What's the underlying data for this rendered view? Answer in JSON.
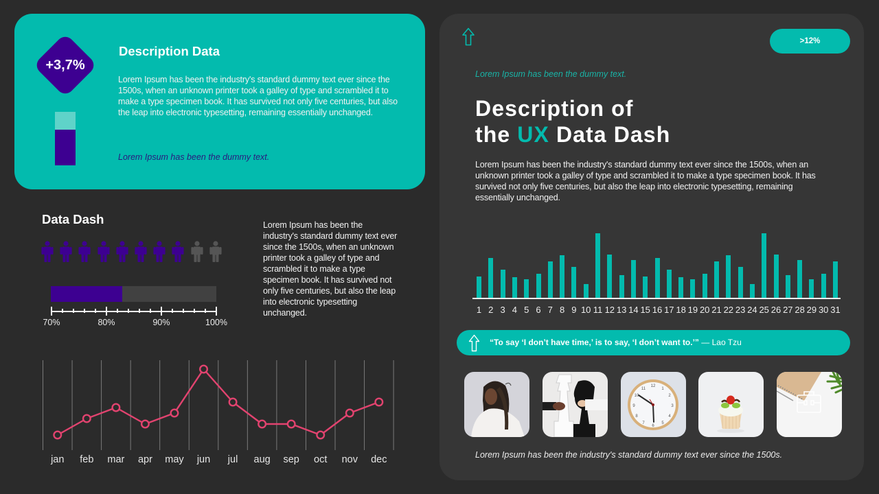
{
  "colors": {
    "background": "#2b2b2b",
    "panel": "#363636",
    "teal": "#03bbae",
    "light_teal": "#5fd3c9",
    "purple": "#3d0091",
    "person_empty": "#555555",
    "line_pink": "#e2436f",
    "gridline": "#7a7a7a"
  },
  "description_card": {
    "badge_value": "+3,7%",
    "title": "Description Data",
    "body": "Lorem Ipsum has been the industry's standard dummy text ever since the 1500s, when an unknown printer took a galley of type and scrambled it to make a type specimen book. It has survived not only five centuries, but also the leap into electronic typesetting, remaining essentially unchanged.",
    "caption": "Lorem Ipsum has been the dummy text."
  },
  "data_dash": {
    "title": "Data Dash",
    "people": {
      "filled": 8,
      "total": 10
    },
    "body": "Lorem Ipsum has been the industry's standard dummy text ever since the 1500s, when an unknown printer took a galley of type and scrambled it to make a type specimen book. It has survived not only five centuries, but also the leap into electronic typesetting unchanged."
  },
  "right_panel": {
    "badge": ">12%",
    "kicker": "Lorem Ipsum has been the dummy text.",
    "title_line1": "Description of",
    "title_line2_pre": "the ",
    "title_line2_accent": "UX",
    "title_line2_post": " Data Dash",
    "body": "Lorem Ipsum has been the industry's standard dummy text ever since the 1500s, when an unknown printer took a galley of type and scrambled it to make a type specimen book. It has survived not only five centuries, but also the leap into electronic typesetting, remaining essentially unchanged.",
    "quote": {
      "text": "“To say ‘I don’t have time,’ is to say, ‘I don’t want to.’”",
      "author": " — Lao Tzu"
    },
    "images": [
      {
        "subject": "woman working"
      },
      {
        "subject": "chess pieces"
      },
      {
        "subject": "wall clock"
      },
      {
        "subject": "cupcake"
      },
      {
        "subject": "notebook with briefcase icon"
      }
    ],
    "footer": "Lorem Ipsum has been the industry's standard dummy text ever since the 1500s."
  },
  "chart_data": [
    {
      "type": "line",
      "title": "",
      "categories": [
        "jan",
        "feb",
        "mar",
        "apr",
        "may",
        "jun",
        "jul",
        "aug",
        "sep",
        "oct",
        "nov",
        "dec"
      ],
      "values": [
        1,
        2.5,
        3.5,
        2,
        3,
        7,
        4,
        2,
        2,
        1,
        3,
        4
      ],
      "xlabel": "",
      "ylabel": "",
      "ylim": [
        0,
        8
      ],
      "grid": "vertical",
      "marker": "hollow-circle",
      "color": "#e2436f"
    },
    {
      "type": "bar",
      "title": "",
      "categories": [
        "1",
        "2",
        "3",
        "4",
        "5",
        "6",
        "7",
        "8",
        "9",
        "10",
        "11",
        "12",
        "13",
        "14",
        "15",
        "16",
        "17",
        "18",
        "19",
        "20",
        "21",
        "22",
        "23",
        "24",
        "25",
        "26",
        "27",
        "28",
        "29",
        "30",
        "31"
      ],
      "values": [
        31,
        58,
        41,
        30,
        27,
        35,
        53,
        62,
        45,
        20,
        94,
        63,
        33,
        55,
        31,
        58,
        41,
        30,
        27,
        35,
        53,
        62,
        45,
        20,
        94,
        63,
        33,
        55,
        27,
        35,
        53
      ],
      "xlabel": "",
      "ylabel": "",
      "ylim": [
        0,
        100
      ],
      "grid": "none",
      "color": "#03bbae"
    },
    {
      "type": "bar",
      "orientation": "horizontal",
      "title": "Data Dash",
      "value": 83,
      "min": 70,
      "max": 100,
      "major_step": 10,
      "minor_step": 2,
      "tick_labels": [
        "70%",
        "80%",
        "90%",
        "100%"
      ],
      "color": "#3d0091"
    }
  ]
}
